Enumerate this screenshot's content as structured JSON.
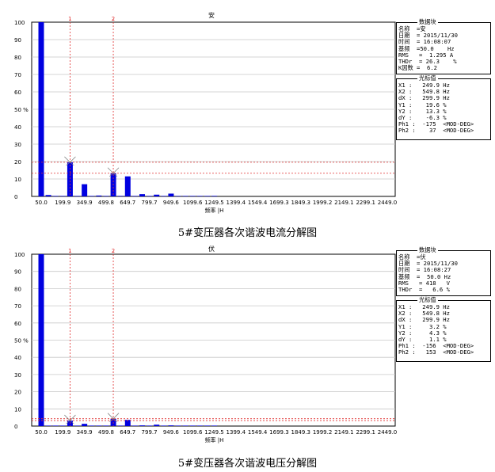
{
  "chart_data": [
    {
      "type": "bar",
      "title": "安",
      "xlabel": "频率 |H",
      "ylabel": "",
      "ylim": [
        0,
        100
      ],
      "yticks": [
        "0",
        "10",
        "20",
        "30",
        "40",
        "50 %",
        "60",
        "70",
        "80",
        "90",
        "100"
      ],
      "xticks": [
        "50.0",
        "199.9",
        "349.9",
        "499.8",
        "649.7",
        "799.7",
        "949.6",
        "1099.6",
        "1249.5",
        "1399.4",
        "1549.4",
        "1699.3",
        "1849.3",
        "1999.2",
        "2149.1",
        "2299.1",
        "2449.0"
      ],
      "x": [
        50,
        100,
        150,
        200,
        250,
        300,
        350,
        400,
        450,
        500,
        550,
        600,
        650,
        700,
        750,
        800,
        850,
        900,
        950,
        1000,
        1050,
        1100,
        1150,
        1200,
        1250
      ],
      "values": [
        100,
        0.8,
        0.1,
        0.2,
        19.6,
        0.2,
        7.0,
        0.1,
        0.5,
        0.2,
        13.3,
        0.3,
        11.5,
        0.1,
        1.3,
        0.1,
        1.0,
        0.1,
        1.6,
        0.1,
        0.1,
        0.1,
        0.1,
        0.1,
        0.3
      ],
      "bar_color": "#0000e0",
      "cursors": [
        {
          "label": "1",
          "x": 249.9
        },
        {
          "label": "2",
          "x": 549.8
        }
      ],
      "hlines": [
        19.6,
        13.3
      ],
      "cursor_color": "#e03030",
      "grid": true,
      "info": {
        "block_title": "数据块",
        "rows": [
          "名称  =安",
          "日期  = 2015/11/30",
          "时间  = 16:08:07",
          "基频  =50.0    Hz",
          "RMS   =  1.295 A",
          "THDr  = 26.3    %",
          "K因数 =  6.2"
        ],
        "cursor_title": "光标值",
        "cursor_rows": [
          "X1 :   249.9 Hz",
          "X2 :   549.8 Hz",
          "dX :   299.9 Hz",
          "Y1 :    19.6 %",
          "Y2 :    13.3 %",
          "dY :    -6.3 %",
          "Ph1 :  -175  <MOD-DEG>",
          "Ph2 :    37  <MOD-DEG>"
        ]
      },
      "caption": "5#变压器各次谐波电流分解图"
    },
    {
      "type": "bar",
      "title": "伏",
      "xlabel": "频率 |H",
      "ylabel": "",
      "ylim": [
        0,
        100
      ],
      "yticks": [
        "0",
        "10",
        "20",
        "30",
        "40",
        "50 %",
        "60",
        "70",
        "80",
        "90",
        "100"
      ],
      "xticks": [
        "50.0",
        "199.9",
        "349.9",
        "499.8",
        "649.7",
        "799.7",
        "949.6",
        "1099.6",
        "1249.5",
        "1399.4",
        "1549.4",
        "1699.3",
        "1849.3",
        "1999.2",
        "2149.1",
        "2299.1",
        "2449.0"
      ],
      "x": [
        50,
        100,
        150,
        200,
        250,
        300,
        350,
        400,
        450,
        500,
        550,
        600,
        650,
        700,
        750,
        800,
        850,
        900,
        950,
        1000,
        1050,
        1100,
        1150,
        1200,
        1250
      ],
      "values": [
        100,
        0.2,
        0.1,
        0.1,
        3.2,
        0.1,
        1.3,
        0.1,
        0.2,
        0.1,
        4.3,
        0.1,
        3.6,
        0.1,
        0.4,
        0.1,
        0.8,
        0.1,
        0.4,
        0.1,
        0.1,
        0.1,
        0.1,
        0.1,
        0.2
      ],
      "bar_color": "#0000e0",
      "cursors": [
        {
          "label": "1",
          "x": 249.9
        },
        {
          "label": "2",
          "x": 549.8
        }
      ],
      "hlines": [
        3.2,
        4.3
      ],
      "cursor_color": "#e03030",
      "grid": true,
      "info": {
        "block_title": "数据块",
        "rows": [
          "名称  =伏",
          "日期  = 2015/11/30",
          "时间  = 16:08:27",
          "基频  =  50.0 Hz",
          "RMS   = 418   V",
          "THDr  =   6.6 %"
        ],
        "cursor_title": "光标值",
        "cursor_rows": [
          "X1 :   249.9 Hz",
          "X2 :   549.8 Hz",
          "dX :   299.9 Hz",
          "Y1 :     3.2 %",
          "Y2 :     4.3 %",
          "dY :     1.1 %",
          "Ph1 :  -156  <MOD-DEG>",
          "Ph2 :   153  <MOD-DEG>"
        ]
      },
      "caption": "5#变压器各次谐波电压分解图"
    }
  ]
}
